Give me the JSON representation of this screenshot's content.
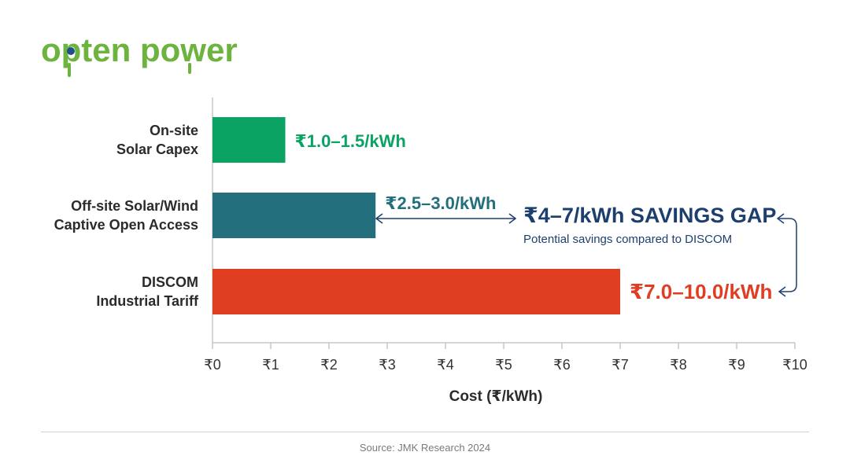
{
  "brand": {
    "name": "opten power",
    "color": "#6cb33f",
    "dot_color": "#1e4f8a"
  },
  "chart_data": {
    "type": "bar",
    "orientation": "horizontal",
    "categories": [
      [
        "On-site",
        "Solar Capex"
      ],
      [
        "Off-site Solar/Wind",
        "Captive Open Access"
      ],
      [
        "DISCOM",
        "Industrial Tariff"
      ]
    ],
    "values": [
      1.25,
      2.8,
      7.0
    ],
    "value_labels": [
      "₹1.0–1.5/kWh",
      "₹2.5–3.0/kWh",
      "₹7.0–10.0/kWh"
    ],
    "colors": [
      "#0aa364",
      "#246f7d",
      "#e03e23"
    ],
    "xlim": [
      0,
      10
    ],
    "xticks": [
      "₹0",
      "₹1",
      "₹2",
      "₹3",
      "₹4",
      "₹5",
      "₹6",
      "₹7",
      "₹8",
      "₹9",
      "₹10"
    ],
    "xlabel": "Cost (₹/kWh)",
    "annotation": {
      "title": "₹4–7/kWh SAVINGS GAP",
      "subtitle": "Potential savings compared to DISCOM",
      "color": "#1d3f6e"
    }
  },
  "footer": {
    "source": "Source: JMK Research 2024"
  }
}
